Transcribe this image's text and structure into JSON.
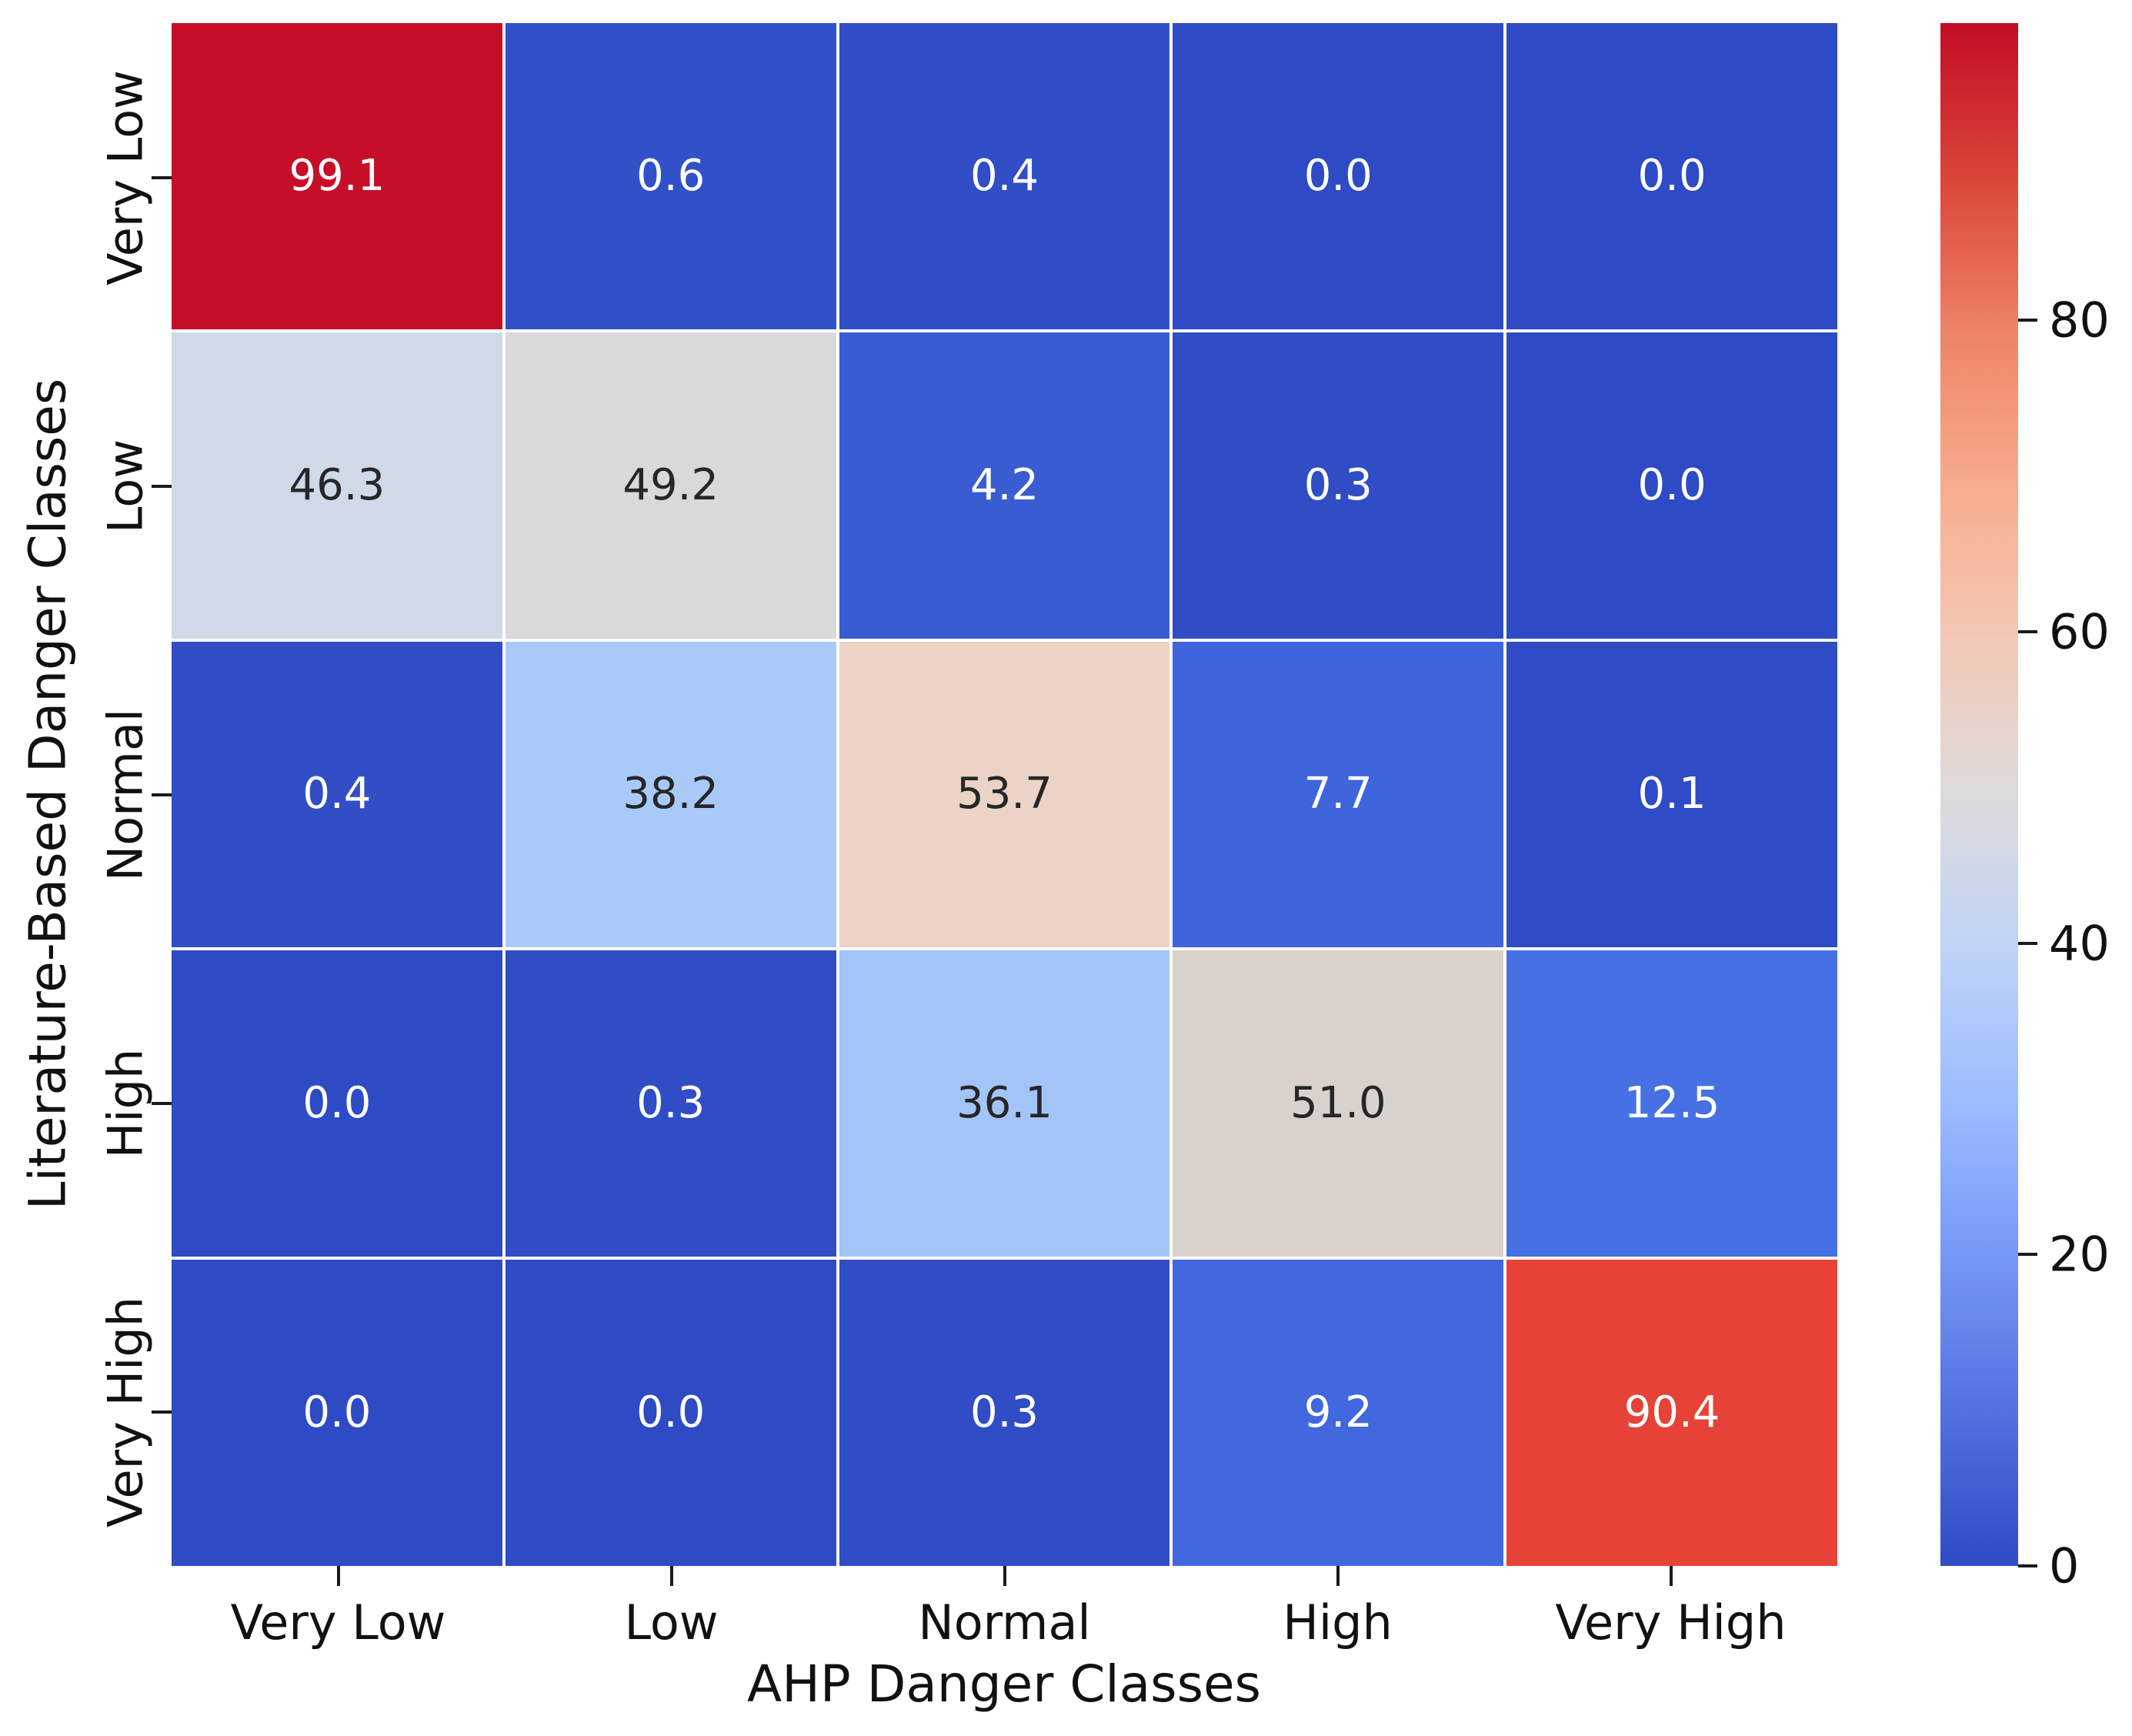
{
  "chart_data": {
    "type": "heatmap",
    "xlabel": "AHP Danger Classes",
    "ylabel": "Literature-Based Danger Classes",
    "x_categories": [
      "Very Low",
      "Low",
      "Normal",
      "High",
      "Very High"
    ],
    "y_categories": [
      "Very Low",
      "Low",
      "Normal",
      "High",
      "Very High"
    ],
    "values": [
      [
        99.1,
        0.6,
        0.4,
        0.0,
        0.0
      ],
      [
        46.3,
        49.2,
        4.2,
        0.3,
        0.0
      ],
      [
        0.4,
        38.2,
        53.7,
        7.7,
        0.1
      ],
      [
        0.0,
        0.3,
        36.1,
        51.0,
        12.5
      ],
      [
        0.0,
        0.0,
        0.3,
        9.2,
        90.4
      ]
    ],
    "value_labels": [
      [
        "99.1",
        "0.6",
        "0.4",
        "0.0",
        "0.0"
      ],
      [
        "46.3",
        "49.2",
        "4.2",
        "0.3",
        "0.0"
      ],
      [
        "0.4",
        "38.2",
        "53.7",
        "7.7",
        "0.1"
      ],
      [
        "0.0",
        "0.3",
        "36.1",
        "51.0",
        "12.5"
      ],
      [
        "0.0",
        "0.0",
        "0.3",
        "9.2",
        "90.4"
      ]
    ],
    "cell_colors": [
      [
        "#C60E29",
        "#3250C8",
        "#314EC7",
        "#2E4AC5",
        "#2E4AC5"
      ],
      [
        "#CFD9E7",
        "#D6DAD9",
        "#3A5CD3",
        "#304DC6",
        "#2E4AC5"
      ],
      [
        "#314EC7",
        "#A9C9F8",
        "#EBD3C5",
        "#3F65DC",
        "#2F4BC6"
      ],
      [
        "#2E4AC5",
        "#304DC6",
        "#A3C4F7",
        "#D8D1CC",
        "#4770E4"
      ],
      [
        "#2E4AC5",
        "#2E4AC5",
        "#304DC6",
        "#4168DE",
        "#E74238"
      ]
    ],
    "cell_text_colors": [
      [
        "#FFFFFF",
        "#FFFFFF",
        "#FFFFFF",
        "#FFFFFF",
        "#FFFFFF"
      ],
      [
        "#262626",
        "#262626",
        "#FFFFFF",
        "#FFFFFF",
        "#FFFFFF"
      ],
      [
        "#FFFFFF",
        "#262626",
        "#262626",
        "#FFFFFF",
        "#FFFFFF"
      ],
      [
        "#FFFFFF",
        "#FFFFFF",
        "#262626",
        "#262626",
        "#FFFFFF"
      ],
      [
        "#FFFFFF",
        "#FFFFFF",
        "#FFFFFF",
        "#FFFFFF",
        "#FFFFFF"
      ]
    ],
    "colormap": "coolwarm",
    "vmin": 0,
    "vmax": 99.1,
    "grid_line_color": "#FFFFFF",
    "colorbar": {
      "position": "right",
      "tick_labels": [
        "80",
        "60",
        "40",
        "20",
        "0"
      ],
      "tick_values": [
        80,
        60,
        40,
        20,
        0
      ],
      "gradient_top_to_bottom": [
        "#C30D26",
        "#DA4538",
        "#EE8367",
        "#F7AC8D",
        "#F3C8B5",
        "#DDDBDB",
        "#BED3F6",
        "#9BBCFE",
        "#7597F6",
        "#5371DF",
        "#2F4BC5"
      ]
    }
  }
}
